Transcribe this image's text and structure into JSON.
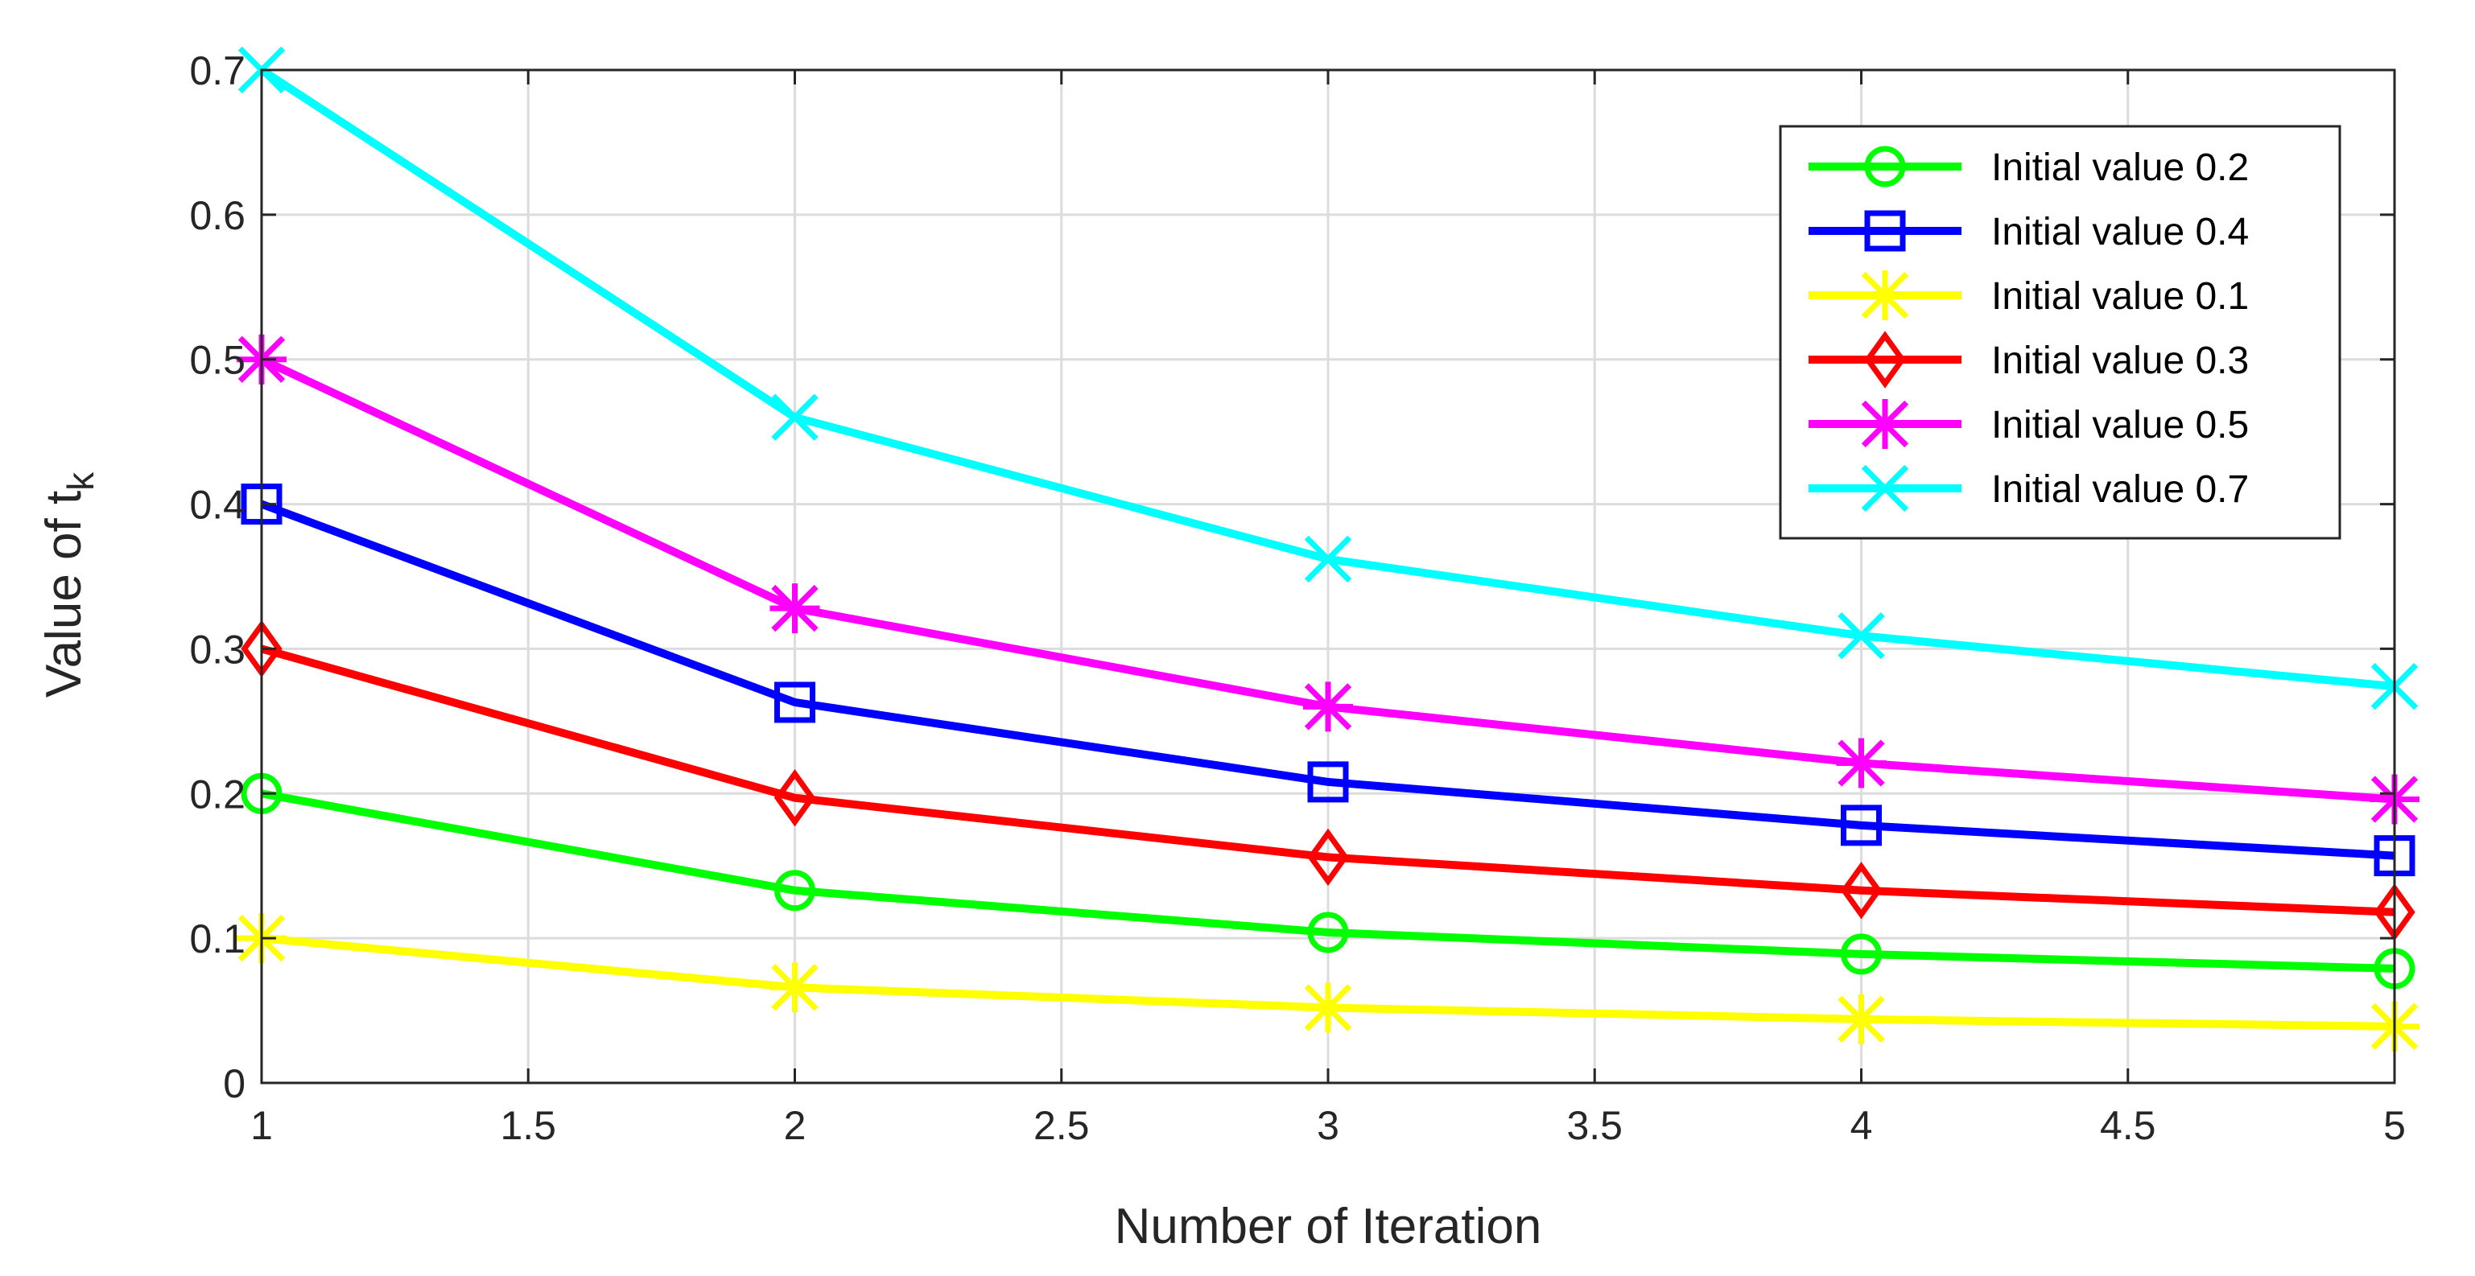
{
  "chart_data": {
    "type": "line",
    "title": "",
    "xlabel": "Number of Iteration",
    "ylabel_main": "Value of t",
    "ylabel_sub": "k",
    "x": [
      1,
      2,
      3,
      4,
      5
    ],
    "xlim": [
      1,
      5
    ],
    "ylim": [
      0,
      0.7
    ],
    "xticks": [
      1,
      1.5,
      2,
      2.5,
      3,
      3.5,
      4,
      4.5,
      5
    ],
    "xtick_labels": [
      "1",
      "1.5",
      "2",
      "2.5",
      "3",
      "3.5",
      "4",
      "4.5",
      "5"
    ],
    "yticks": [
      0,
      0.1,
      0.2,
      0.3,
      0.4,
      0.5,
      0.6,
      0.7
    ],
    "ytick_labels": [
      "0",
      "0.1",
      "0.2",
      "0.3",
      "0.4",
      "0.5",
      "0.6",
      "0.7"
    ],
    "grid": true,
    "legend_position": "top-right",
    "series": [
      {
        "name": "Initial value 0.2",
        "color": "#00ff00",
        "marker": "circle",
        "values": [
          0.2,
          0.133,
          0.104,
          0.089,
          0.079
        ]
      },
      {
        "name": "Initial value 0.4",
        "color": "#0000ff",
        "marker": "square",
        "values": [
          0.4,
          0.263,
          0.208,
          0.178,
          0.157
        ]
      },
      {
        "name": "Initial value 0.1",
        "color": "#ffff00",
        "marker": "asterisk",
        "values": [
          0.1,
          0.066,
          0.052,
          0.044,
          0.039
        ]
      },
      {
        "name": "Initial value 0.3",
        "color": "#ff0000",
        "marker": "diamond",
        "values": [
          0.3,
          0.197,
          0.156,
          0.133,
          0.118
        ]
      },
      {
        "name": "Initial value 0.5",
        "color": "#ff00ff",
        "marker": "asterisk",
        "values": [
          0.5,
          0.328,
          0.26,
          0.221,
          0.196
        ]
      },
      {
        "name": "Initial value 0.7",
        "color": "#00ffff",
        "marker": "x",
        "values": [
          0.7,
          0.46,
          0.362,
          0.309,
          0.274
        ]
      }
    ]
  }
}
